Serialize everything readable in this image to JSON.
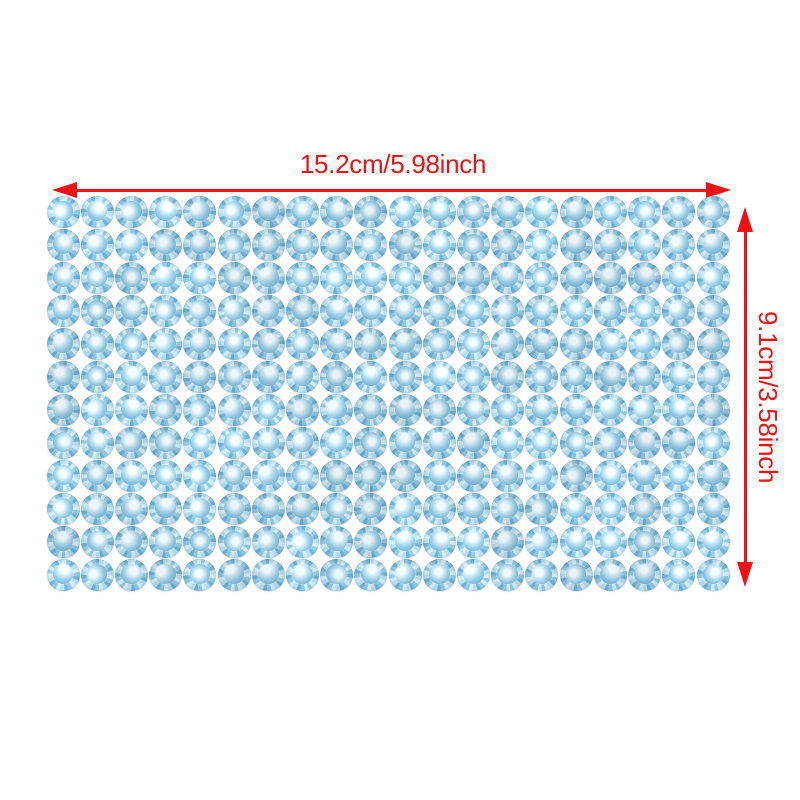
{
  "page": {
    "background": "#ffffff",
    "description": "Product photo of a self-adhesive rhinestone sticker sheet with dimension annotations"
  },
  "dimensions": {
    "width_label": "15.2cm/5.98inch",
    "height_label": "9.1cm/3.58inch",
    "arrow_color": "#f01212"
  },
  "sticker_sheet": {
    "rows": 12,
    "columns": 20,
    "total_gems": 240,
    "gem_shape": "round-faceted",
    "gem_palette": {
      "facet_light": "#cfe9f4",
      "facet_mid": "#8ec5de",
      "facet_deep": "#6aadd2",
      "facet_soft": "#b3daea",
      "table_highlight": "#f2fbff",
      "table_light": "#cbe7f3",
      "table_mid": "#8fc5df",
      "table_deep": "#5f9fc7"
    }
  }
}
